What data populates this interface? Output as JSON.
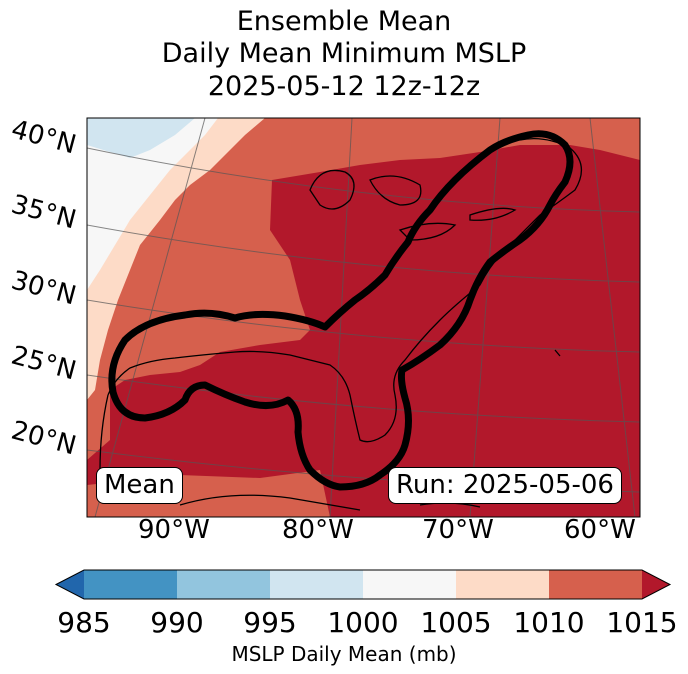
{
  "title": {
    "line1": "Ensemble Mean",
    "line2": "Daily Mean Minimum MSLP",
    "line3": "2025-05-12 12z-12z"
  },
  "map": {
    "lat_labels": [
      "40°N",
      "35°N",
      "30°N",
      "25°N",
      "20°N"
    ],
    "lon_labels": [
      "90°W",
      "80°W",
      "70°W",
      "60°W"
    ],
    "stat_label": "Mean",
    "run_label": "Run: 2025-05-06",
    "fill_colors": {
      "lt_1000": "#d1e5f0",
      "1000_1005": "#f7f7f7",
      "1005_1010": "#fddbc7",
      "1010_1015": "#d6604d",
      "gt_1015": "#b2182b"
    }
  },
  "colorbar": {
    "ticks": [
      "985",
      "990",
      "995",
      "1000",
      "1005",
      "1010",
      "1015"
    ],
    "colors": [
      "#2166ac",
      "#4393c3",
      "#92c5de",
      "#d1e5f0",
      "#f7f7f7",
      "#fddbc7",
      "#d6604d",
      "#b2182b"
    ],
    "label": "MSLP Daily Mean (mb)"
  }
}
